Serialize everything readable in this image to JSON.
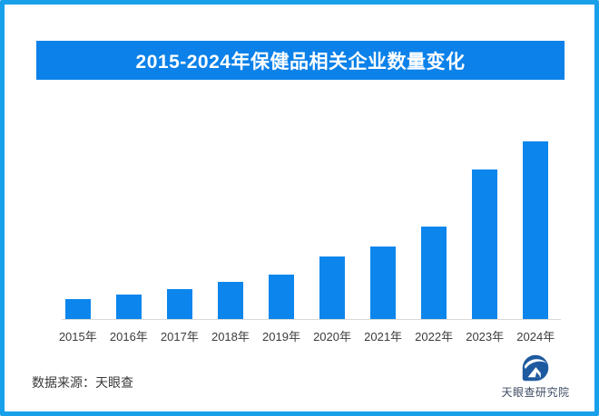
{
  "frame": {
    "border_color": "#19a0ea",
    "background_color": "#ffffff"
  },
  "title_banner": {
    "text": "2015-2024年保健品相关企业数量变化",
    "bg_color": "#0b81e9",
    "text_color": "#ffffff"
  },
  "chart_data": {
    "type": "bar",
    "title": "2015-2024年保健品相关企业数量变化",
    "categories": [
      "2015年",
      "2016年",
      "2017年",
      "2018年",
      "2019年",
      "2020年",
      "2021年",
      "2022年",
      "2023年",
      "2024年"
    ],
    "values": [
      11,
      14,
      17,
      21,
      25,
      35,
      41,
      52,
      84,
      100
    ],
    "xlabel": "",
    "ylabel": "",
    "ylim": [
      0,
      100
    ],
    "grid": false,
    "legend": false,
    "value_labels_shown": false,
    "bar_color": "#0c86ec",
    "axis_line_color": "#d9d9d9",
    "tick_label_color": "#3c3c3c"
  },
  "footer": {
    "source_text": "数据来源：天眼查",
    "source_color": "#3a3a3a",
    "logo": {
      "icon": "tianyancha-logo-icon",
      "label": "天眼查研究院",
      "icon_color": "#1e5a9f",
      "label_color": "#3b4a60"
    }
  }
}
